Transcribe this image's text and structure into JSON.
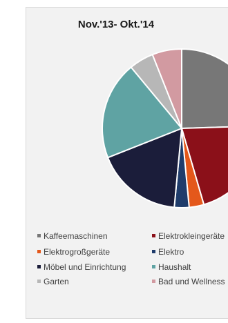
{
  "chart_data": {
    "type": "pie",
    "title": "Nov.'13- Okt.'14",
    "slices": [
      {
        "label": "Kaffeemaschinen",
        "value": 0.245,
        "color": "#777777"
      },
      {
        "label": "Elektrokleingeräte",
        "value": 0.21,
        "color": "#8b1019"
      },
      {
        "label": "Elektrogroßgeräte",
        "value": 0.03,
        "color": "#e4581b"
      },
      {
        "label": "Elektro",
        "value": 0.03,
        "color": "#1f3c6b"
      },
      {
        "label": "Möbel und Einrichtung",
        "value": 0.175,
        "color": "#1b1d3a"
      },
      {
        "label": "Haushalt",
        "value": 0.2,
        "color": "#5fa3a3"
      },
      {
        "label": "Garten",
        "value": 0.05,
        "color": "#b7b7b7"
      },
      {
        "label": "Bad und Wellness",
        "value": 0.06,
        "color": "#d29aa1"
      }
    ],
    "legend": {
      "placement": "bottom",
      "items": [
        {
          "label": "Kaffeemaschinen",
          "color": "#777777"
        },
        {
          "label": "Elektrokleingeräte",
          "color": "#8b1019"
        },
        {
          "label": "Elektrogroßgeräte",
          "color": "#e4581b"
        },
        {
          "label": "Elektro",
          "color": "#1f3c6b"
        },
        {
          "label": "Möbel und Einrichtung",
          "color": "#1b1d3a"
        },
        {
          "label": "Haushalt",
          "color": "#5fa3a3"
        },
        {
          "label": "Garten",
          "color": "#b7b7b7"
        },
        {
          "label": "Bad und Wellness",
          "color": "#d29aa1"
        }
      ]
    }
  }
}
